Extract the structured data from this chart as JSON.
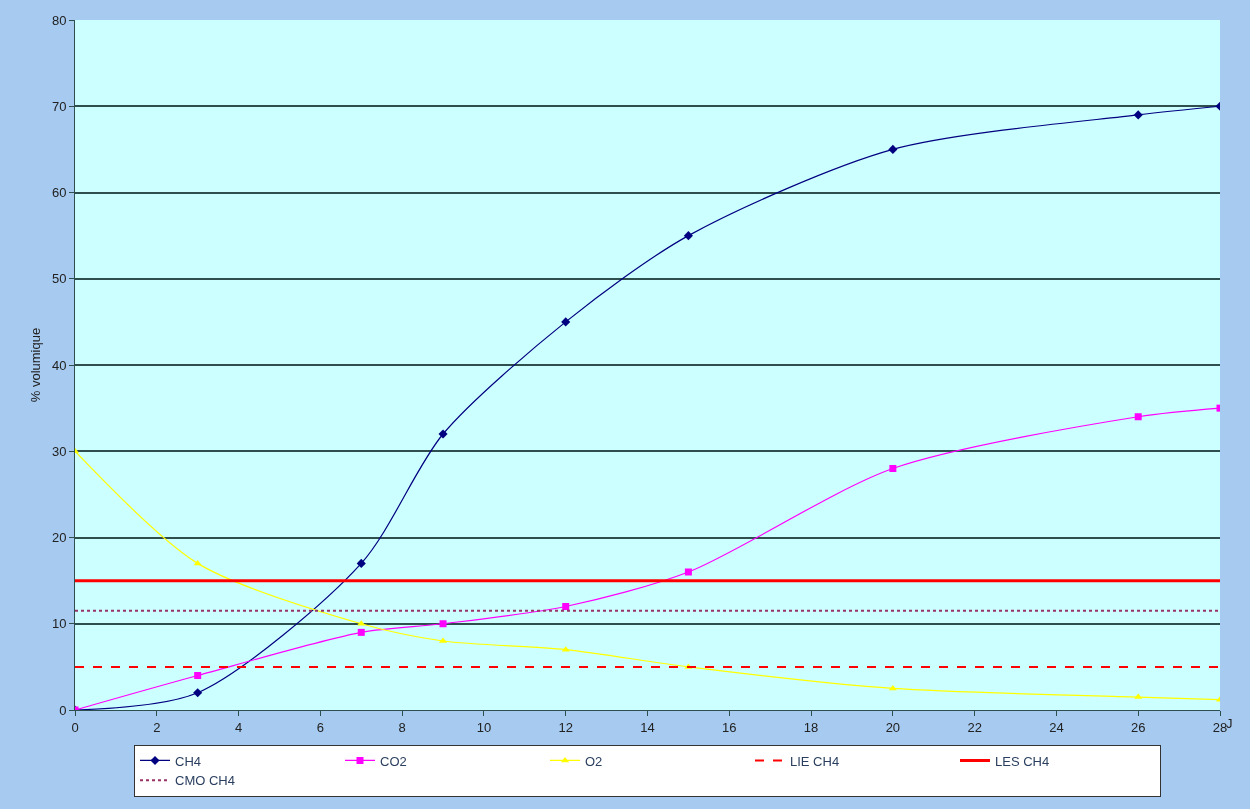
{
  "chart_data": {
    "type": "line",
    "xlabel": "J",
    "ylabel": "% volumique",
    "xlim": [
      0,
      28
    ],
    "xticks": [
      0,
      2,
      4,
      6,
      8,
      10,
      12,
      14,
      16,
      18,
      20,
      22,
      24,
      26,
      28
    ],
    "ylim": [
      0,
      80
    ],
    "yticks": [
      0,
      10,
      20,
      30,
      40,
      50,
      60,
      70,
      80
    ],
    "grid": "y",
    "legend": "bottom",
    "series": [
      {
        "name": "CH4",
        "color": "#000080",
        "marker": "diamond",
        "x": [
          0,
          3,
          7,
          9,
          12,
          15,
          20,
          26,
          28
        ],
        "values": [
          0,
          2,
          17,
          32,
          45,
          55,
          65,
          69,
          70
        ]
      },
      {
        "name": "CO2",
        "color": "#ff00ff",
        "marker": "square",
        "x": [
          0,
          3,
          7,
          9,
          12,
          15,
          20,
          26,
          28
        ],
        "values": [
          0,
          4,
          9,
          10,
          12,
          16,
          28,
          34,
          35
        ]
      },
      {
        "name": "O2",
        "color": "#ffff00",
        "marker": "triangle",
        "x": [
          0,
          3,
          7,
          9,
          12,
          15,
          20,
          26,
          28
        ],
        "values": [
          30,
          17,
          10,
          8,
          7,
          5,
          2.5,
          1.5,
          1.2
        ]
      }
    ],
    "ref_lines": [
      {
        "axis": "y",
        "value": 5,
        "label": "LIE CH4",
        "color": "#ff0000",
        "line_style": "dashed"
      },
      {
        "axis": "y",
        "value": 15,
        "label": "LES CH4",
        "color": "#ff0000",
        "line_style": "solid"
      },
      {
        "axis": "y",
        "value": 11.5,
        "label": "CMO CH4",
        "color": "#993366",
        "line_style": "dotted"
      }
    ]
  }
}
